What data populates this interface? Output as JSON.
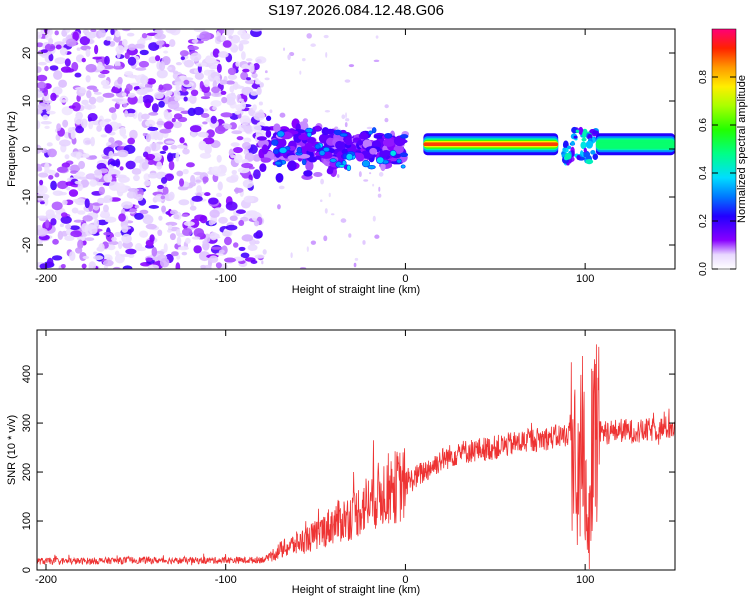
{
  "title": "S197.2026.084.12.48.G06",
  "chart_data": [
    {
      "type": "heatmap",
      "xlabel": "Height of straight line (km)",
      "ylabel": "Frequency (Hz)",
      "xlim": [
        -205,
        150
      ],
      "ylim": [
        -25,
        25
      ],
      "x_ticks": [
        -200,
        -100,
        0,
        100
      ],
      "y_ticks": [
        -20,
        -10,
        0,
        10,
        20
      ],
      "colorbar": {
        "label": "Normalized spectral amplitude",
        "range": [
          0,
          1
        ],
        "ticks": [
          0.0,
          0.2,
          0.4,
          0.6,
          0.8
        ]
      },
      "features": [
        {
          "segment": "noise",
          "x_range": [
            -205,
            -80
          ],
          "frequency_range": [
            -25,
            25
          ],
          "amplitude": 0.1
        },
        {
          "segment": "emerging tone",
          "x_range": [
            -80,
            0
          ],
          "frequency_range": [
            -8,
            8
          ],
          "amplitude": 0.25
        },
        {
          "segment": "steady tone",
          "x_range": [
            10,
            85
          ],
          "frequency_hz": 1,
          "amplitude": 0.9
        },
        {
          "segment": "disturbance",
          "x_range": [
            88,
            106
          ],
          "frequency_range": [
            -3,
            4
          ],
          "amplitude": 0.35
        },
        {
          "segment": "steady tone",
          "x_range": [
            106,
            150
          ],
          "frequency_hz": 1,
          "amplitude": 0.5
        }
      ]
    },
    {
      "type": "line",
      "xlabel": "Height of straight line (km)",
      "ylabel": "SNR (10 * v/v)",
      "xlim": [
        -205,
        150
      ],
      "ylim": [
        0,
        490
      ],
      "x_ticks": [
        -200,
        -100,
        0,
        100
      ],
      "y_ticks": [
        0,
        100,
        200,
        300,
        400
      ],
      "series": [
        {
          "name": "SNR",
          "color": "#ee3333",
          "x": [
            -205,
            -180,
            -150,
            -120,
            -100,
            -85,
            -78,
            -70,
            -60,
            -50,
            -40,
            -30,
            -20,
            -10,
            0,
            10,
            20,
            30,
            40,
            50,
            60,
            70,
            80,
            88,
            92,
            95,
            98,
            102,
            105,
            110,
            120,
            130,
            140,
            150
          ],
          "values": [
            18,
            18,
            20,
            19,
            20,
            20,
            22,
            40,
            55,
            70,
            95,
            110,
            140,
            165,
            175,
            200,
            225,
            240,
            245,
            250,
            258,
            265,
            270,
            275,
            280,
            150,
            290,
            150,
            280,
            280,
            285,
            282,
            288,
            292
          ]
        }
      ]
    }
  ]
}
